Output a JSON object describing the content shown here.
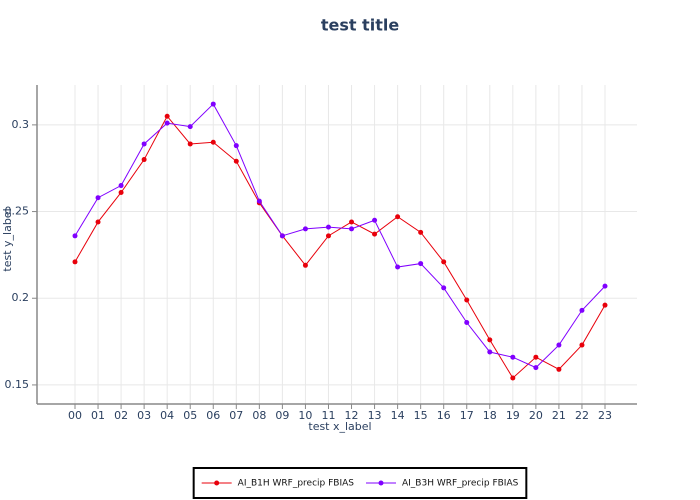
{
  "chart_data": {
    "type": "line",
    "title": "test title",
    "x_label": "test x_label",
    "y_label": "test y_label",
    "categories": [
      "00",
      "01",
      "02",
      "03",
      "04",
      "05",
      "06",
      "07",
      "08",
      "09",
      "10",
      "11",
      "12",
      "13",
      "14",
      "15",
      "16",
      "17",
      "18",
      "19",
      "20",
      "21",
      "22",
      "23"
    ],
    "series": [
      {
        "name": "AI_B1H WRF_precip FBIAS",
        "color": "#e8000b",
        "values": [
          0.221,
          0.244,
          0.261,
          0.28,
          0.305,
          0.289,
          0.29,
          0.279,
          0.255,
          0.236,
          0.219,
          0.236,
          0.244,
          0.237,
          0.247,
          0.238,
          0.221,
          0.199,
          0.176,
          0.154,
          0.166,
          0.159,
          0.173,
          0.196
        ]
      },
      {
        "name": "AI_B3H WRF_precip FBIAS",
        "color": "#8000ff",
        "values": [
          0.236,
          0.258,
          0.265,
          0.289,
          0.301,
          0.299,
          0.312,
          0.288,
          0.256,
          0.236,
          0.24,
          0.241,
          0.24,
          0.245,
          0.218,
          0.22,
          0.206,
          0.186,
          0.169,
          0.166,
          0.16,
          0.173,
          0.193,
          0.207
        ]
      }
    ],
    "ylim": [
      0.139,
      0.323
    ],
    "yticks": [
      0.15,
      0.2,
      0.25,
      0.3
    ],
    "grid": true,
    "legend": "bottom"
  }
}
